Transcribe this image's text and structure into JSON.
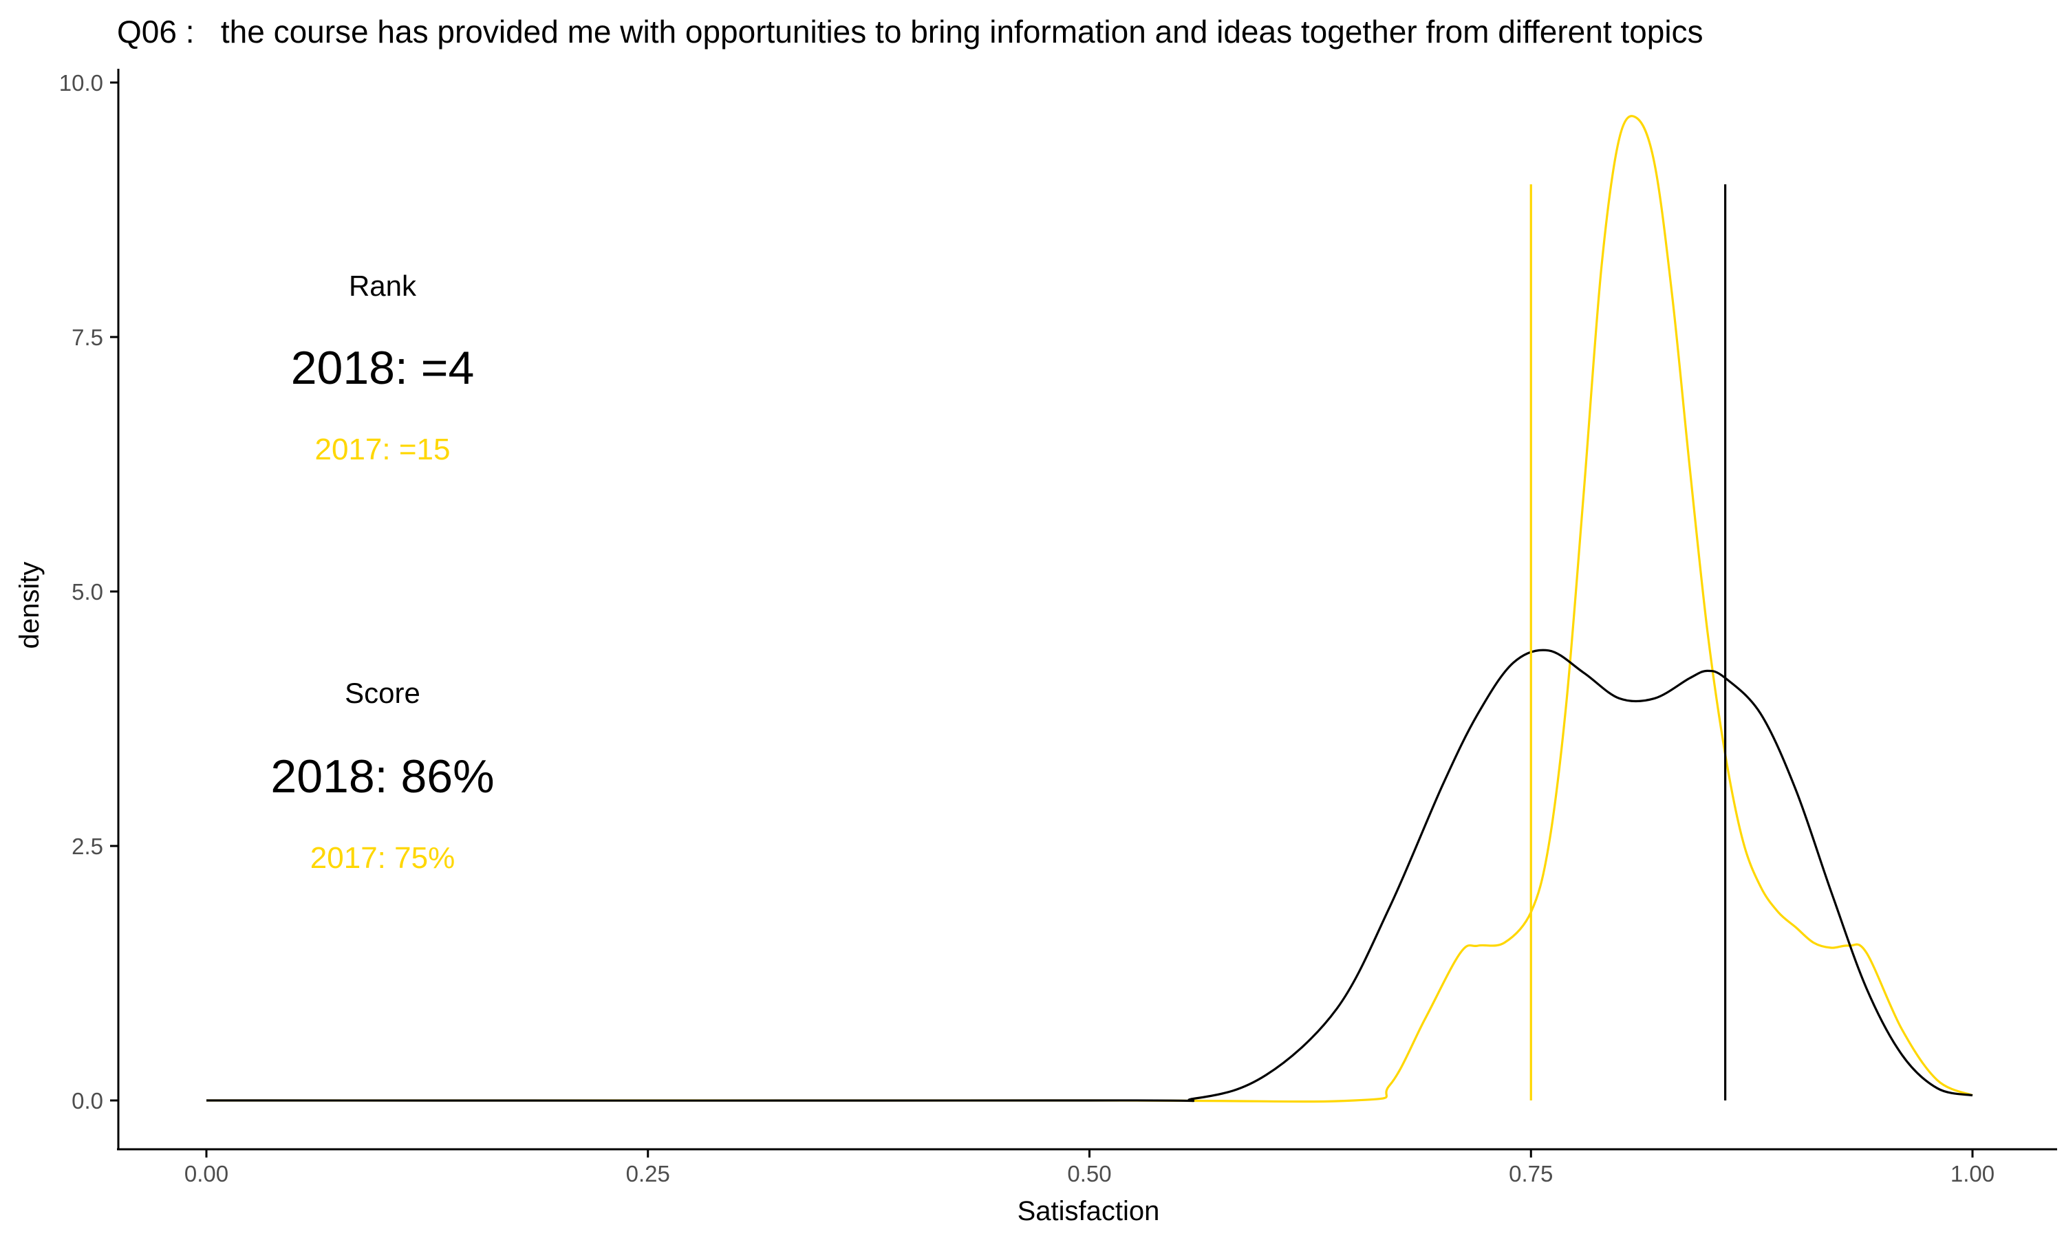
{
  "chart_data": {
    "type": "line",
    "title": "Q06 :   the course has provided me with opportunities to bring information and ideas together from different topics",
    "xlabel": "Satisfaction",
    "ylabel": "density",
    "xlim": [
      -0.05,
      1.05
    ],
    "ylim": [
      -0.5,
      10.1
    ],
    "grid": false,
    "x_ticks": [
      0.0,
      0.25,
      0.5,
      0.75,
      1.0
    ],
    "x_tick_labels": [
      "0.00",
      "0.25",
      "0.50",
      "0.75",
      "1.00"
    ],
    "y_ticks": [
      0.0,
      2.5,
      5.0,
      7.5,
      10.0
    ],
    "y_tick_labels": [
      "0.0",
      "2.5",
      "5.0",
      "7.5",
      "10.0"
    ],
    "series": [
      {
        "color": "#FFD700",
        "x": [
          0.0,
          0.5,
          0.65,
          0.67,
          0.69,
          0.71,
          0.72,
          0.735,
          0.75,
          0.76,
          0.77,
          0.78,
          0.79,
          0.8,
          0.81,
          0.82,
          0.83,
          0.84,
          0.85,
          0.86,
          0.87,
          0.88,
          0.89,
          0.9,
          0.91,
          0.92,
          0.93,
          0.94,
          0.96,
          0.98,
          1.0
        ],
        "y": [
          0.0,
          0.0,
          0.0,
          0.15,
          0.8,
          1.45,
          1.52,
          1.55,
          1.85,
          2.5,
          3.9,
          6.0,
          8.2,
          9.45,
          9.65,
          9.2,
          7.9,
          6.2,
          4.6,
          3.4,
          2.55,
          2.1,
          1.85,
          1.7,
          1.55,
          1.5,
          1.52,
          1.45,
          0.7,
          0.2,
          0.05
        ]
      },
      {
        "color": "#000000",
        "x": [
          0.0,
          0.5,
          0.56,
          0.6,
          0.64,
          0.67,
          0.7,
          0.72,
          0.74,
          0.76,
          0.78,
          0.8,
          0.82,
          0.84,
          0.85,
          0.86,
          0.88,
          0.9,
          0.92,
          0.94,
          0.96,
          0.98,
          1.0
        ],
        "y": [
          0.0,
          0.0,
          0.02,
          0.25,
          0.9,
          1.9,
          3.1,
          3.8,
          4.3,
          4.42,
          4.2,
          3.95,
          3.95,
          4.15,
          4.22,
          4.15,
          3.8,
          3.05,
          2.05,
          1.1,
          0.45,
          0.12,
          0.05
        ]
      }
    ],
    "vlines": [
      {
        "x": 0.75,
        "y_top": 9.0,
        "color": "#FFD700"
      },
      {
        "x": 0.86,
        "y_top": 9.0,
        "color": "#000000"
      }
    ],
    "annotations": {
      "rank_label": "Rank",
      "rank_2018": "2018: =4",
      "rank_2017": "2017: =15",
      "score_label": "Score",
      "score_2018": "2018: 86%",
      "score_2017": "2017: 75%",
      "color_2018": "#000000",
      "color_2017": "#FFD700"
    }
  }
}
